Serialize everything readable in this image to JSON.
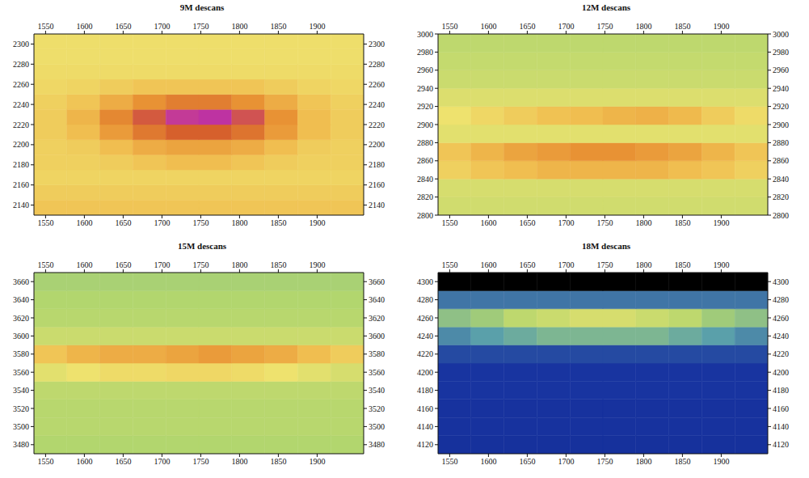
{
  "chart_data": [
    {
      "type": "heatmap",
      "title": "9M descans",
      "xlim": [
        1535,
        1960
      ],
      "xticks": [
        1550,
        1600,
        1650,
        1700,
        1750,
        1800,
        1850,
        1900
      ],
      "ylim": [
        2130,
        2310
      ],
      "yticks": [
        2140,
        2160,
        2180,
        2200,
        2220,
        2240,
        2260,
        2280,
        2300
      ],
      "x_edges": [
        1535,
        1577.5,
        1620,
        1662.5,
        1705,
        1747.5,
        1790,
        1832.5,
        1875,
        1917.5,
        1960
      ],
      "y_edges": [
        2130,
        2145,
        2160,
        2175,
        2190,
        2205,
        2220,
        2235,
        2250,
        2265,
        2280,
        2295,
        2310
      ],
      "cells": [
        [
          5.8,
          5.8,
          5.8,
          5.8,
          5.8,
          5.8,
          5.8,
          5.8,
          5.8,
          5.8
        ],
        [
          5.6,
          5.6,
          5.6,
          5.6,
          5.6,
          5.6,
          5.6,
          5.6,
          5.6,
          5.6
        ],
        [
          5.4,
          5.4,
          5.4,
          5.4,
          5.4,
          5.4,
          5.4,
          5.4,
          5.4,
          5.4
        ],
        [
          5.5,
          5.5,
          5.6,
          5.8,
          6.0,
          6.0,
          5.8,
          5.6,
          5.5,
          5.5
        ],
        [
          5.5,
          5.6,
          6.0,
          6.4,
          6.6,
          6.6,
          6.4,
          6.0,
          5.6,
          5.5
        ],
        [
          5.6,
          6.0,
          6.8,
          7.5,
          8.0,
          8.0,
          7.6,
          6.8,
          6.0,
          5.6
        ],
        [
          5.6,
          6.2,
          7.2,
          8.2,
          9.2,
          9.4,
          8.4,
          7.0,
          6.0,
          5.6
        ],
        [
          5.5,
          5.8,
          6.4,
          7.0,
          7.4,
          7.4,
          7.0,
          6.4,
          5.8,
          5.5
        ],
        [
          5.3,
          5.4,
          5.6,
          5.8,
          5.8,
          5.8,
          5.8,
          5.6,
          5.4,
          5.3
        ],
        [
          5.2,
          5.2,
          5.2,
          5.2,
          5.2,
          5.2,
          5.2,
          5.2,
          5.2,
          5.2
        ],
        [
          5.1,
          5.1,
          5.1,
          5.1,
          5.1,
          5.1,
          5.1,
          5.1,
          5.1,
          5.1
        ],
        [
          5.1,
          5.1,
          5.1,
          5.1,
          5.1,
          5.1,
          5.1,
          5.1,
          5.1,
          5.1
        ]
      ]
    },
    {
      "type": "heatmap",
      "title": "12M descans",
      "xlim": [
        1535,
        1960
      ],
      "xticks": [
        1550,
        1600,
        1650,
        1700,
        1750,
        1800,
        1850,
        1900
      ],
      "ylim": [
        2800,
        3000
      ],
      "yticks": [
        2800,
        2820,
        2840,
        2860,
        2880,
        2900,
        2920,
        2940,
        2960,
        2980,
        3000
      ],
      "x_edges": [
        1535,
        1577.5,
        1620,
        1662.5,
        1705,
        1747.5,
        1790,
        1832.5,
        1875,
        1917.5,
        1960
      ],
      "y_edges": [
        2800,
        2820,
        2840,
        2860,
        2880,
        2900,
        2920,
        2940,
        2960,
        2980,
        3000
      ],
      "cells": [
        [
          4.5,
          4.5,
          4.5,
          4.5,
          4.5,
          4.5,
          4.5,
          4.5,
          4.5,
          4.5
        ],
        [
          4.6,
          4.6,
          4.6,
          4.6,
          4.6,
          4.6,
          4.6,
          4.6,
          4.6,
          4.6
        ],
        [
          5.5,
          5.8,
          6.0,
          6.2,
          6.2,
          6.2,
          6.2,
          6.0,
          5.8,
          5.5
        ],
        [
          5.8,
          6.2,
          6.6,
          6.8,
          7.0,
          7.0,
          6.8,
          6.6,
          6.2,
          5.8
        ],
        [
          4.8,
          4.8,
          4.8,
          4.8,
          4.8,
          4.8,
          4.8,
          4.8,
          4.8,
          4.8
        ],
        [
          5.0,
          5.3,
          5.6,
          5.9,
          6.0,
          6.2,
          6.3,
          6.1,
          5.6,
          5.2
        ],
        [
          4.7,
          4.7,
          4.7,
          4.7,
          4.7,
          4.7,
          4.7,
          4.7,
          4.7,
          4.7
        ],
        [
          4.4,
          4.4,
          4.4,
          4.4,
          4.4,
          4.4,
          4.4,
          4.4,
          4.4,
          4.4
        ],
        [
          4.3,
          4.3,
          4.3,
          4.3,
          4.3,
          4.3,
          4.3,
          4.3,
          4.3,
          4.3
        ],
        [
          4.2,
          4.2,
          4.2,
          4.2,
          4.2,
          4.2,
          4.2,
          4.2,
          4.2,
          4.2
        ]
      ]
    },
    {
      "type": "heatmap",
      "title": "15M descans",
      "xlim": [
        1535,
        1960
      ],
      "xticks": [
        1550,
        1600,
        1650,
        1700,
        1750,
        1800,
        1850,
        1900
      ],
      "ylim": [
        3470,
        3670
      ],
      "yticks": [
        3480,
        3500,
        3520,
        3540,
        3560,
        3580,
        3600,
        3620,
        3640,
        3660
      ],
      "x_edges": [
        1535,
        1577.5,
        1620,
        1662.5,
        1705,
        1747.5,
        1790,
        1832.5,
        1875,
        1917.5,
        1960
      ],
      "y_edges": [
        3470,
        3490,
        3510,
        3530,
        3550,
        3570,
        3590,
        3610,
        3630,
        3650,
        3670
      ],
      "cells": [
        [
          4.0,
          4.0,
          4.0,
          4.0,
          4.0,
          4.0,
          4.0,
          4.0,
          4.0,
          4.0
        ],
        [
          4.1,
          4.1,
          4.1,
          4.1,
          4.1,
          4.1,
          4.1,
          4.1,
          4.1,
          4.1
        ],
        [
          4.1,
          4.1,
          4.1,
          4.1,
          4.1,
          4.1,
          4.1,
          4.1,
          4.1,
          4.1
        ],
        [
          4.2,
          4.2,
          4.2,
          4.2,
          4.2,
          4.2,
          4.2,
          4.2,
          4.2,
          4.2
        ],
        [
          4.8,
          5.0,
          5.2,
          5.2,
          5.3,
          5.3,
          5.2,
          5.0,
          4.8,
          4.6
        ],
        [
          5.8,
          6.2,
          6.4,
          6.4,
          6.6,
          6.8,
          6.6,
          6.4,
          6.0,
          5.6
        ],
        [
          4.4,
          4.4,
          4.4,
          4.4,
          4.4,
          4.4,
          4.4,
          4.4,
          4.4,
          4.4
        ],
        [
          4.1,
          4.1,
          4.1,
          4.1,
          4.1,
          4.1,
          4.1,
          4.1,
          4.1,
          4.1
        ],
        [
          4.0,
          4.0,
          4.0,
          4.0,
          4.0,
          4.0,
          4.0,
          4.0,
          4.0,
          4.0
        ],
        [
          3.9,
          3.9,
          3.9,
          3.9,
          3.9,
          3.9,
          3.9,
          3.9,
          3.9,
          3.9
        ]
      ]
    },
    {
      "type": "heatmap",
      "title": "18M descans",
      "xlim": [
        1535,
        1960
      ],
      "xticks": [
        1550,
        1600,
        1650,
        1700,
        1750,
        1800,
        1850,
        1900
      ],
      "ylim": [
        4110,
        4310
      ],
      "yticks": [
        4120,
        4140,
        4160,
        4180,
        4200,
        4220,
        4240,
        4260,
        4280,
        4300
      ],
      "x_edges": [
        1535,
        1577.5,
        1620,
        1662.5,
        1705,
        1747.5,
        1790,
        1832.5,
        1875,
        1917.5,
        1960
      ],
      "y_edges": [
        4110,
        4130,
        4150,
        4170,
        4190,
        4210,
        4230,
        4250,
        4270,
        4290,
        4310
      ],
      "cells": [
        [
          1.8,
          1.8,
          1.8,
          1.8,
          1.8,
          1.8,
          1.8,
          1.8,
          1.8,
          1.8
        ],
        [
          1.9,
          1.9,
          1.9,
          1.9,
          1.9,
          1.9,
          1.9,
          1.9,
          1.9,
          1.9
        ],
        [
          1.9,
          1.9,
          1.9,
          1.9,
          1.9,
          1.9,
          1.9,
          1.9,
          1.9,
          1.9
        ],
        [
          2.0,
          2.0,
          2.0,
          2.0,
          2.0,
          2.0,
          2.0,
          2.0,
          2.0,
          2.0
        ],
        [
          2.0,
          2.0,
          2.0,
          2.0,
          2.0,
          2.0,
          2.0,
          2.0,
          2.0,
          2.0
        ],
        [
          2.2,
          2.2,
          2.2,
          2.2,
          2.2,
          2.2,
          2.2,
          2.2,
          2.2,
          2.2
        ],
        [
          2.8,
          3.0,
          3.2,
          3.4,
          3.4,
          3.4,
          3.4,
          3.2,
          3.0,
          2.8
        ],
        [
          3.6,
          3.8,
          4.2,
          4.4,
          4.6,
          4.6,
          4.4,
          4.2,
          3.8,
          3.6
        ],
        [
          2.6,
          2.6,
          2.6,
          2.6,
          2.6,
          2.6,
          2.6,
          2.6,
          2.6,
          2.6
        ],
        [
          null,
          null,
          null,
          null,
          null,
          null,
          null,
          null,
          null,
          null
        ]
      ]
    }
  ]
}
